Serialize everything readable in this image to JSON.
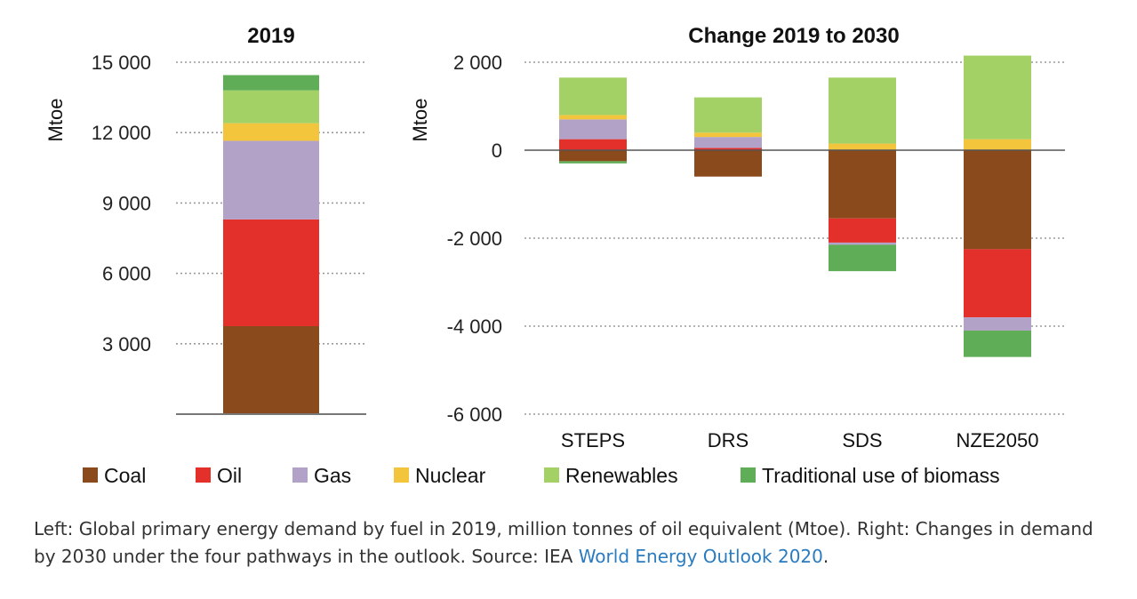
{
  "colors": {
    "Coal": "#8b4a1c",
    "Oil": "#e3302a",
    "Gas": "#b3a2c8",
    "Nuclear": "#f3c53d",
    "Renewables": "#a3d165",
    "Traditional use of biomass": "#5fad56"
  },
  "legend": [
    "Coal",
    "Oil",
    "Gas",
    "Nuclear",
    "Renewables",
    "Traditional use of biomass"
  ],
  "chart_data": [
    {
      "type": "bar",
      "stacked": true,
      "title": "2019",
      "ylabel": "Mtoe",
      "xlabel": "",
      "ylim": [
        0,
        15000
      ],
      "yticks": [
        3000,
        6000,
        9000,
        12000,
        15000
      ],
      "ytick_labels": [
        "3 000",
        "6 000",
        "9 000",
        "12 000",
        "15 000"
      ],
      "grid": true,
      "categories": [
        "2019"
      ],
      "series": [
        {
          "name": "Coal",
          "values": [
            3750
          ]
        },
        {
          "name": "Oil",
          "values": [
            4550
          ]
        },
        {
          "name": "Gas",
          "values": [
            3350
          ]
        },
        {
          "name": "Nuclear",
          "values": [
            750
          ]
        },
        {
          "name": "Renewables",
          "values": [
            1400
          ]
        },
        {
          "name": "Traditional use of biomass",
          "values": [
            650
          ]
        }
      ]
    },
    {
      "type": "bar",
      "stacked": true,
      "title": "Change 2019 to 2030",
      "ylabel": "Mtoe",
      "xlabel": "",
      "ylim": [
        -6000,
        2000
      ],
      "yticks": [
        -6000,
        -4000,
        -2000,
        0,
        2000
      ],
      "ytick_labels": [
        "-6 000",
        "-4 000",
        "-2 000",
        "0",
        "2 000"
      ],
      "grid": true,
      "categories": [
        "STEPS",
        "DRS",
        "SDS",
        "NZE2050"
      ],
      "series": [
        {
          "name": "Coal",
          "values": [
            -250,
            -600,
            -1550,
            -2250
          ]
        },
        {
          "name": "Oil",
          "values": [
            250,
            50,
            -550,
            -1550
          ]
        },
        {
          "name": "Gas",
          "values": [
            450,
            250,
            -50,
            -300
          ]
        },
        {
          "name": "Nuclear",
          "values": [
            100,
            100,
            150,
            250
          ]
        },
        {
          "name": "Renewables",
          "values": [
            850,
            800,
            1500,
            1900
          ]
        },
        {
          "name": "Traditional use of biomass",
          "values": [
            -50,
            0,
            -600,
            -600
          ]
        }
      ]
    }
  ],
  "caption": {
    "text": "Left: Global primary energy demand by fuel in 2019, million tonnes of oil equivalent (Mtoe). Right: Changes in demand by 2030 under the four pathways in the outlook. Source: IEA ",
    "link": "World Energy Outlook 2020",
    "end": "."
  }
}
